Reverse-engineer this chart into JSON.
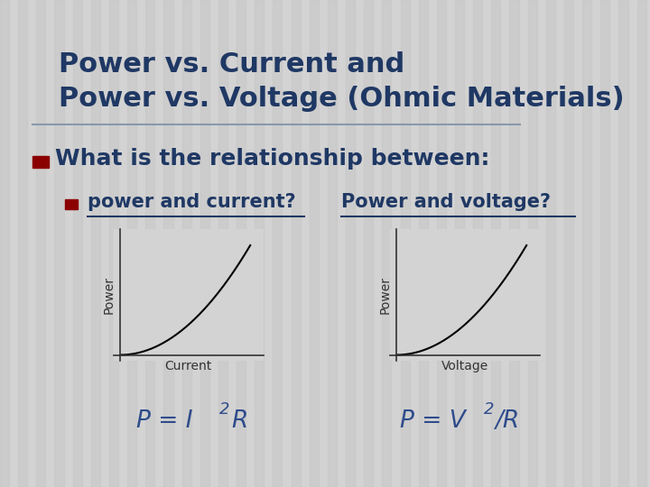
{
  "title_line1": "Power vs. Current and",
  "title_line2": "Power vs. Voltage (Ohmic Materials)",
  "title_color": "#1F3864",
  "background_color": "#D3D3D3",
  "stripe_color": "#C8C8C8",
  "bullet_color": "#8B0000",
  "main_bullet": "What is the relationship between:",
  "sub_bullet_left": "power and current?",
  "sub_bullet_right": "Power and voltage?",
  "xlabel_left": "Current",
  "xlabel_right": "Voltage",
  "ylabel": "Power",
  "text_color": "#1F3864",
  "formula_color": "#2E4B8B",
  "axis_color": "#333333",
  "separator_color": "#8899AA"
}
